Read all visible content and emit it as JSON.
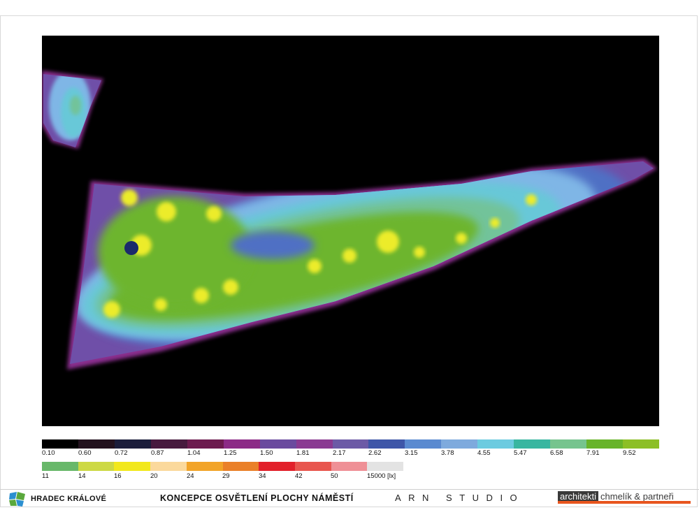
{
  "map": {
    "palette": {
      "edge_purple": "#8a2d8e",
      "violet": "#6f4fa8",
      "blue": "#4f6fc4",
      "light_blue": "#7fb6e6",
      "cyan": "#67c8d8",
      "teal_green": "#72c39a",
      "green": "#6db52e",
      "lime": "#9ccd2d",
      "yellow": "#ecec2a",
      "pale_yellow": "#f7f48a"
    }
  },
  "legend": {
    "row1": [
      {
        "label": "0.10",
        "color": "#000000"
      },
      {
        "label": "0.60",
        "color": "#23121e"
      },
      {
        "label": "0.72",
        "color": "#1b1d3b"
      },
      {
        "label": "0.87",
        "color": "#471a3e"
      },
      {
        "label": "1.04",
        "color": "#6c1a4e"
      },
      {
        "label": "1.25",
        "color": "#8c2a86"
      },
      {
        "label": "1.50",
        "color": "#6a4a9e"
      },
      {
        "label": "1.81",
        "color": "#8a3a92"
      },
      {
        "label": "2.17",
        "color": "#6c5aa6"
      },
      {
        "label": "2.62",
        "color": "#3e56a8"
      },
      {
        "label": "3.15",
        "color": "#5a8ad0"
      },
      {
        "label": "3.78",
        "color": "#7eaadd"
      },
      {
        "label": "4.55",
        "color": "#6ccbe0"
      },
      {
        "label": "5.47",
        "color": "#38b6a0"
      },
      {
        "label": "6.58",
        "color": "#76c48e"
      },
      {
        "label": "7.91",
        "color": "#68b42a"
      },
      {
        "label": "9.52",
        "color": "#8cbf26"
      }
    ],
    "row2": [
      {
        "label": "11",
        "color": "#68b86a"
      },
      {
        "label": "14",
        "color": "#cdd944"
      },
      {
        "label": "16",
        "color": "#f2e81c"
      },
      {
        "label": "20",
        "color": "#fbd99c"
      },
      {
        "label": "24",
        "color": "#f2a428"
      },
      {
        "label": "29",
        "color": "#ea8028"
      },
      {
        "label": "34",
        "color": "#e2202a"
      },
      {
        "label": "42",
        "color": "#e8564e"
      },
      {
        "label": "50",
        "color": "#ef9096"
      },
      {
        "label": "15000 [lx]",
        "color": "#e3e3e3"
      }
    ]
  },
  "footer": {
    "city": "HRADEC KRÁLOVÉ",
    "project_title": "KONCEPCE OSVĚTLENÍ PLOCHY NÁMĚSTÍ",
    "studio": "ARN STUDIO",
    "architects_word": "architekti",
    "architects_names": "chmelík & partneři",
    "brand_colors": {
      "logo_blue": "#2b8fd0",
      "logo_green": "#5aa83c",
      "accent_orange": "#e8551e",
      "dark_gray": "#3a3a3a"
    }
  }
}
